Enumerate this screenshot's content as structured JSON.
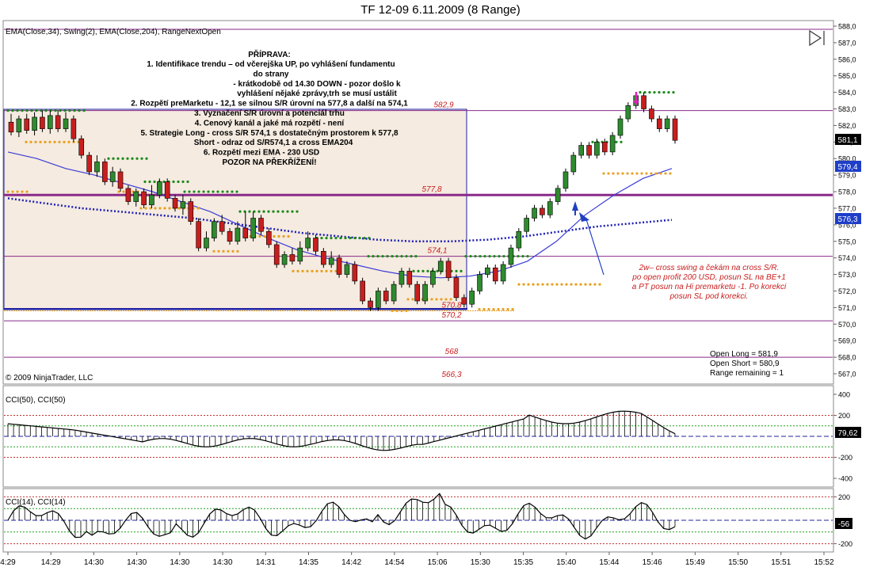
{
  "title": "TF 12-09  6.11.2009 (8 Range)",
  "indicators_label": "EMA(Close,34), Swing(2), EMA(Close,204), RangeNextOpen",
  "copyright": "© 2009 NinjaTrader, LLC",
  "note_title": "PŘÍPRAVA:",
  "notes": [
    "1. Identifikace trendu – od včerejška UP, po vyhlášení fundamentu",
    "do strany",
    "- krátkodobě od 14.30 DOWN - pozor došlo k",
    "vyhlášení nějaké zprávy,trh se musí ustálit",
    "2. Rozpětí preMarketu - 12,1 se silnou S/R úrovní na 577,8 a další na 574,1",
    "3. Vyznačení S/R úrovní a potenciál trhu",
    "4. Cenový kanál a jaké má rozpětí - není",
    "5. Strategie Long - cross S/R 574,1 s dostatečným prostorem k 577,8",
    "Short - odraz od S/R574,1 a cross EMA204",
    "6. Rozpětí mezi EMA - 230 USD",
    "POZOR NA PŘEKŘÍŽENÍ!"
  ],
  "comment_lines": [
    "2w– cross swing a čekám na cross S/R.",
    "po open profit 200 USD, posun SL na BE+1",
    "a PT posun na Hi premarketu -1. Po korekci",
    "posun SL pod korekci."
  ],
  "open_info": [
    "Open Long = 581,9",
    "Open Short = 580,9",
    "Range remaining = 1"
  ],
  "level_labels": [
    "582,9",
    "577,8",
    "574,1",
    "570,8",
    "570,2",
    "568",
    "566,3"
  ],
  "price_badges": {
    "last": "581,1",
    "ema34": "579,4",
    "ema204": "576,3"
  },
  "cci50_label": "CCI(50), CCI(50)",
  "cci14_label": "CCI(14), CCI(14)",
  "cci50_badge": "79,62",
  "cci14_badge": "-56",
  "colors": {
    "up_candle": "#2e8b2e",
    "down_candle": "#c81e1e",
    "ema34": "#3c3cd8",
    "ema204": "#1e1eb4",
    "swing_high": "#1a8a1a",
    "swing_low": "#e8a020",
    "level": "#8a2a8a",
    "premarket_box": "#f5ebe0",
    "annotation": "#c81e1e"
  },
  "chart_data": {
    "type": "candlestick",
    "title": "TF 12-09  6.11.2009 (8 Range)",
    "price_axis": {
      "min": 567,
      "max": 588,
      "step": 1
    },
    "y_tick_labels": [
      "588,0",
      "587,0",
      "586,0",
      "585,0",
      "584,0",
      "583,0",
      "582,0",
      "581,0",
      "580,0",
      "579,0",
      "578,0",
      "577,0",
      "576,0",
      "575,0",
      "574,0",
      "573,0",
      "572,0",
      "571,0",
      "570,0",
      "569,0",
      "568,0",
      "567,0"
    ],
    "x_tick_labels": [
      "4:29",
      "14:29",
      "14:30",
      "14:30",
      "14:30",
      "14:30",
      "14:31",
      "14:35",
      "14:42",
      "14:54",
      "15:06",
      "15:30",
      "15:35",
      "15:40",
      "15:44",
      "15:46",
      "15:49",
      "15:50",
      "15:51",
      "15:52"
    ],
    "levels": [
      582.9,
      577.8,
      574.1,
      570.8,
      570.2,
      568,
      566.3
    ],
    "candles": [
      [
        582.2,
        581.6,
        582.7,
        581.4
      ],
      [
        581.6,
        582.4,
        582.6,
        581.3
      ],
      [
        582.4,
        581.7,
        582.7,
        581.5
      ],
      [
        581.7,
        582.5,
        582.8,
        581.4
      ],
      [
        582.5,
        581.8,
        582.9,
        581.6
      ],
      [
        581.8,
        582.6,
        582.9,
        581.5
      ],
      [
        582.6,
        581.8,
        582.9,
        581.6
      ],
      [
        581.8,
        582.4,
        582.8,
        581.6
      ],
      [
        582.4,
        581.2,
        582.6,
        581.0
      ],
      [
        581.2,
        580.2,
        581.4,
        580.0
      ],
      [
        580.2,
        579.2,
        580.4,
        579.0
      ],
      [
        579.2,
        579.8,
        580.2,
        578.9
      ],
      [
        579.8,
        578.6,
        580.0,
        578.4
      ],
      [
        578.6,
        579.2,
        579.5,
        578.3
      ],
      [
        579.2,
        578.2,
        579.4,
        578.0
      ],
      [
        578.2,
        577.4,
        578.4,
        577.2
      ],
      [
        577.4,
        578.0,
        578.2,
        577.1
      ],
      [
        578.0,
        577.2,
        578.2,
        577.0
      ],
      [
        577.2,
        577.8,
        578.4,
        577.0
      ],
      [
        577.8,
        578.6,
        578.8,
        577.6
      ],
      [
        578.6,
        577.6,
        578.8,
        577.4
      ],
      [
        577.6,
        577.0,
        577.8,
        576.8
      ],
      [
        577.0,
        577.4,
        577.8,
        576.6
      ],
      [
        577.4,
        576.2,
        577.6,
        576.0
      ],
      [
        576.2,
        574.6,
        576.4,
        574.4
      ],
      [
        574.6,
        575.2,
        575.6,
        574.4
      ],
      [
        575.2,
        576.2,
        576.4,
        575.0
      ],
      [
        576.2,
        575.6,
        576.6,
        575.4
      ],
      [
        575.6,
        575.0,
        575.8,
        574.8
      ],
      [
        575.0,
        575.8,
        576.2,
        574.8
      ],
      [
        575.8,
        575.2,
        576.8,
        575.0
      ],
      [
        575.2,
        576.4,
        576.8,
        575.0
      ],
      [
        576.4,
        575.6,
        576.6,
        575.4
      ],
      [
        575.6,
        574.8,
        575.8,
        574.6
      ],
      [
        574.8,
        573.6,
        575.0,
        573.4
      ],
      [
        573.6,
        574.2,
        574.4,
        573.4
      ],
      [
        574.2,
        573.8,
        574.6,
        573.6
      ],
      [
        573.8,
        574.6,
        575.0,
        573.6
      ],
      [
        574.6,
        575.2,
        575.6,
        574.4
      ],
      [
        575.2,
        574.4,
        575.4,
        574.2
      ],
      [
        574.4,
        573.6,
        574.6,
        573.4
      ],
      [
        573.6,
        574.0,
        574.4,
        573.4
      ],
      [
        574.0,
        573.0,
        574.2,
        572.8
      ],
      [
        573.0,
        573.6,
        573.8,
        572.8
      ],
      [
        573.6,
        572.6,
        573.8,
        572.4
      ],
      [
        572.6,
        571.4,
        572.8,
        571.2
      ],
      [
        571.4,
        571.0,
        571.6,
        570.8
      ],
      [
        571.0,
        572.0,
        572.2,
        570.8
      ],
      [
        572.0,
        571.4,
        572.2,
        571.2
      ],
      [
        571.4,
        572.4,
        572.6,
        571.2
      ],
      [
        572.4,
        573.2,
        573.4,
        572.2
      ],
      [
        573.2,
        572.4,
        573.4,
        572.2
      ],
      [
        572.4,
        571.4,
        572.6,
        571.2
      ],
      [
        571.4,
        572.4,
        572.6,
        571.2
      ],
      [
        572.4,
        573.2,
        573.4,
        572.2
      ],
      [
        573.2,
        573.8,
        574.0,
        573.0
      ],
      [
        573.8,
        572.8,
        574.0,
        572.6
      ],
      [
        572.8,
        571.6,
        573.0,
        571.4
      ],
      [
        571.6,
        571.2,
        571.8,
        571.0
      ],
      [
        571.2,
        572.0,
        572.2,
        571.0
      ],
      [
        572.0,
        573.0,
        573.2,
        571.8
      ],
      [
        573.0,
        573.4,
        573.6,
        572.8
      ],
      [
        573.4,
        572.6,
        573.6,
        572.4
      ],
      [
        572.6,
        573.6,
        573.8,
        572.4
      ],
      [
        573.6,
        574.6,
        574.8,
        573.4
      ],
      [
        574.6,
        575.6,
        575.8,
        574.4
      ],
      [
        575.6,
        576.4,
        576.6,
        575.4
      ],
      [
        576.4,
        577.0,
        577.2,
        576.2
      ],
      [
        577.0,
        576.6,
        577.2,
        576.4
      ],
      [
        576.6,
        577.4,
        577.6,
        576.4
      ],
      [
        577.4,
        578.2,
        578.4,
        577.2
      ],
      [
        578.2,
        579.2,
        579.4,
        578.0
      ],
      [
        579.2,
        580.2,
        580.4,
        579.0
      ],
      [
        580.2,
        580.8,
        581.0,
        580.0
      ],
      [
        580.8,
        580.2,
        581.0,
        580.0
      ],
      [
        580.2,
        581.0,
        581.2,
        580.0
      ],
      [
        581.0,
        580.4,
        581.2,
        580.2
      ],
      [
        580.4,
        581.4,
        581.6,
        580.2
      ],
      [
        581.4,
        582.4,
        582.6,
        581.2
      ],
      [
        582.4,
        583.2,
        583.4,
        582.2
      ],
      [
        583.2,
        583.8,
        584.0,
        583.0
      ],
      [
        583.8,
        583.0,
        584.0,
        582.8
      ],
      [
        583.0,
        582.4,
        583.2,
        582.2
      ],
      [
        582.4,
        581.8,
        582.6,
        581.6
      ],
      [
        581.8,
        582.4,
        582.6,
        581.6
      ],
      [
        582.4,
        581.1,
        582.6,
        580.9
      ]
    ],
    "ema34": [
      580.4,
      580.0,
      579.4,
      579.0,
      578.5,
      578.0,
      577.4,
      576.8,
      576.0,
      575.2,
      574.5,
      574.0,
      573.6,
      573.2,
      572.9,
      572.8,
      572.9,
      573.2,
      573.8,
      575.0,
      576.6,
      577.8,
      578.8,
      579.4
    ],
    "ema204": [
      577.6,
      577.3,
      577.0,
      576.8,
      576.6,
      576.4,
      576.1,
      575.8,
      575.5,
      575.3,
      575.1,
      575.0,
      575.0,
      575.1,
      575.3,
      575.6,
      575.9,
      576.1,
      576.3
    ],
    "cci50": {
      "axis": [
        -400,
        -200,
        200,
        400
      ],
      "last": 79.62,
      "levels": [
        200,
        100,
        -100,
        -200
      ]
    },
    "cci14": {
      "axis": [
        -200,
        200
      ],
      "last": -56,
      "levels": [
        200,
        100,
        -100,
        -200
      ]
    }
  }
}
